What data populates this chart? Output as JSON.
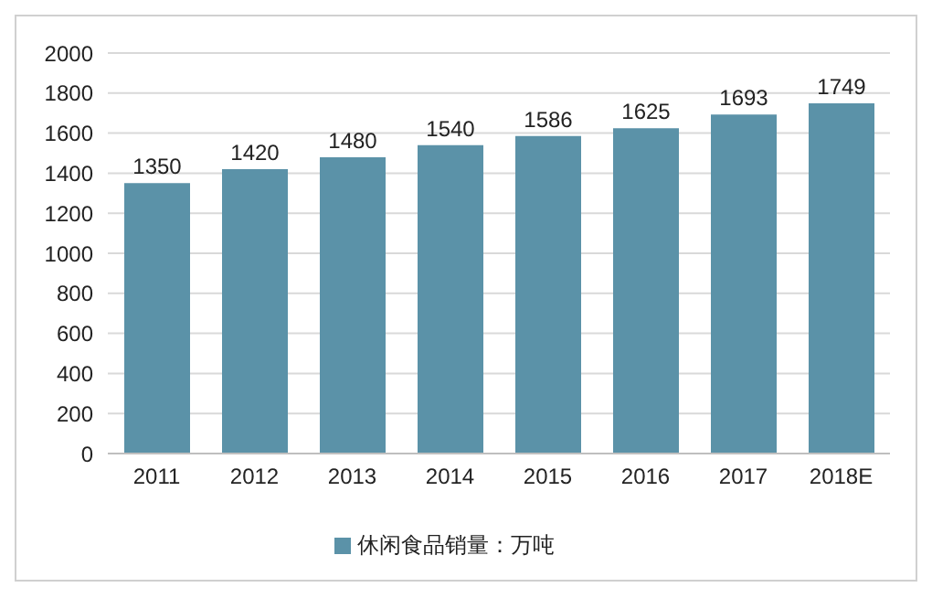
{
  "chart_data": {
    "type": "bar",
    "categories": [
      "2011",
      "2012",
      "2013",
      "2014",
      "2015",
      "2016",
      "2017",
      "2018E"
    ],
    "series": [
      {
        "name": "休闲食品销量：万吨",
        "color": "#5b92a8",
        "values": [
          1350,
          1420,
          1480,
          1540,
          1586,
          1625,
          1693,
          1749
        ]
      }
    ],
    "ylim": [
      0,
      2000
    ],
    "yticks": [
      0,
      200,
      400,
      600,
      800,
      1000,
      1200,
      1400,
      1600,
      1800,
      2000
    ],
    "grid": "y",
    "legend": "bottom",
    "data_labels": true
  }
}
